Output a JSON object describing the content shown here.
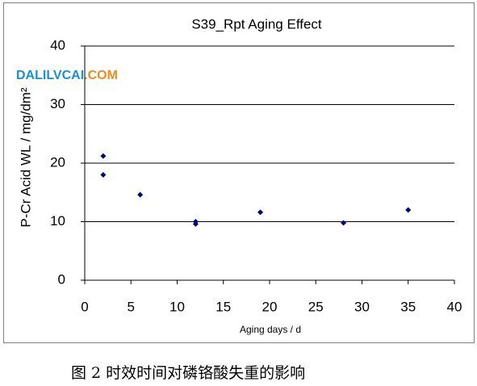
{
  "chart_data": {
    "type": "scatter",
    "title": "S39_Rpt Aging Effect",
    "x_label": "Aging days / d",
    "y_label": "P-Cr Acid WL / mg/dm²",
    "series": [
      {
        "name": "S39_Rpt",
        "color": "#000080",
        "x": [
          2,
          2,
          6,
          12,
          12,
          19,
          28,
          35
        ],
        "values": [
          21.2,
          18,
          14.6,
          10,
          9.6,
          11.6,
          9.8,
          12
        ]
      }
    ],
    "xlim": [
      0,
      40
    ],
    "xticks": [
      0,
      5,
      10,
      15,
      20,
      25,
      30,
      35,
      40
    ],
    "ylim": [
      0,
      40
    ],
    "yticks": [
      0,
      10,
      20,
      30,
      40
    ],
    "grid": true
  },
  "watermark": {
    "part1": "DALILVCAI",
    "part2": ".COM"
  },
  "caption": "图 2 时效时间对磷铬酸失重的影响"
}
